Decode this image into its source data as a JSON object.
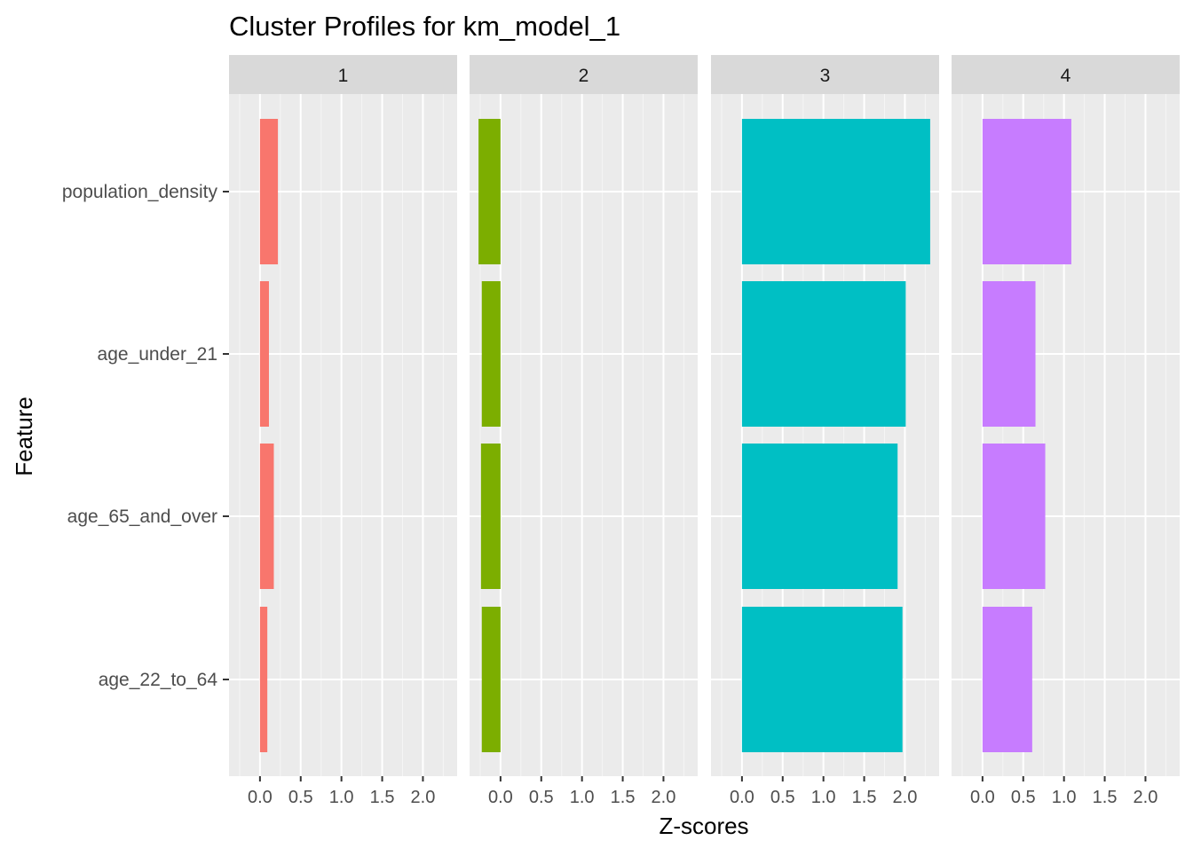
{
  "chart_data": {
    "type": "bar",
    "orientation": "horizontal",
    "title": "Cluster Profiles for km_model_1",
    "xlabel": "Z-scores",
    "ylabel": "Feature",
    "xlim": [
      -0.38,
      2.42
    ],
    "x_ticks": [
      0.0,
      0.5,
      1.0,
      1.5,
      2.0
    ],
    "x_tick_labels": [
      "0.0",
      "0.5",
      "1.0",
      "1.5",
      "2.0"
    ],
    "grid": true,
    "legend": "none",
    "categories": [
      "population_density",
      "age_under_21",
      "age_65_and_over",
      "age_22_to_64"
    ],
    "panels": [
      {
        "label": "1",
        "color": "#F8766D",
        "values": [
          0.22,
          0.11,
          0.17,
          0.09
        ]
      },
      {
        "label": "2",
        "color": "#7CAE00",
        "values": [
          -0.27,
          -0.23,
          -0.24,
          -0.23
        ]
      },
      {
        "label": "3",
        "color": "#00BFC4",
        "values": [
          2.31,
          2.01,
          1.91,
          1.97
        ]
      },
      {
        "label": "4",
        "color": "#C77CFF",
        "values": [
          1.09,
          0.65,
          0.77,
          0.61
        ]
      }
    ]
  }
}
